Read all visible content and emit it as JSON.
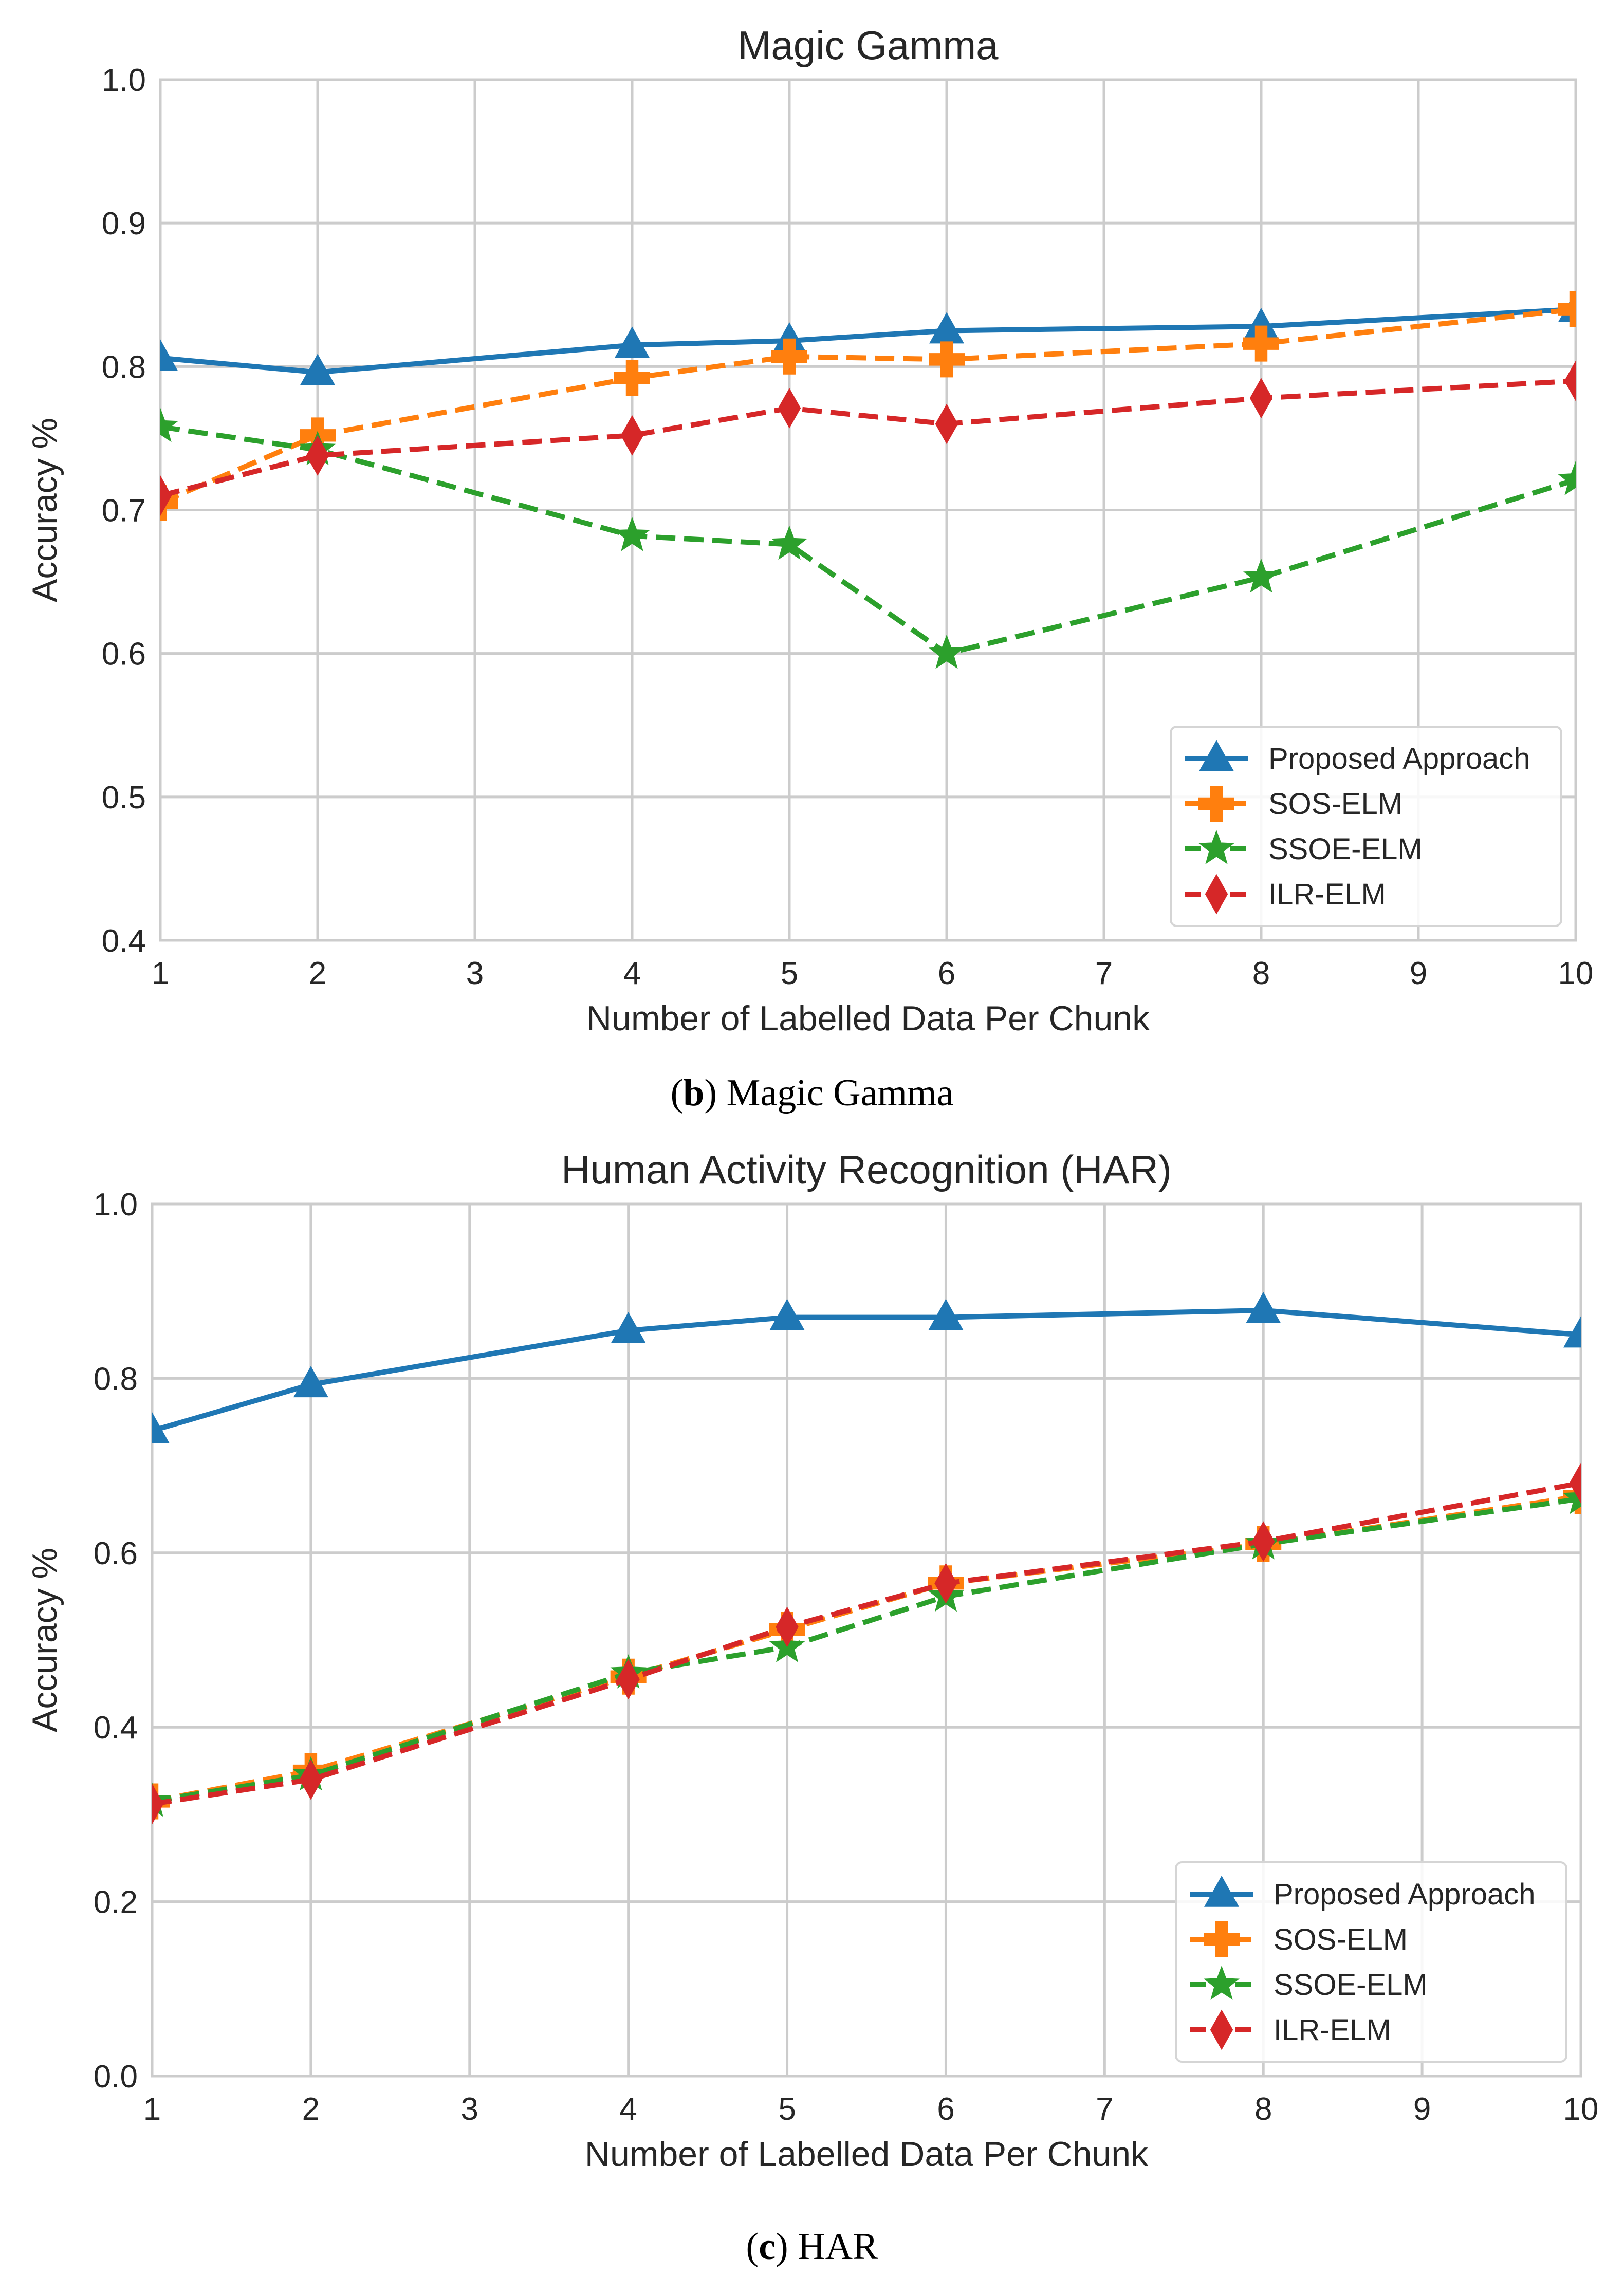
{
  "chart_data": [
    {
      "type": "line",
      "title": "Magic Gamma",
      "xlabel": "Number of Labelled Data Per Chunk",
      "ylabel": "Accuracy %",
      "x": [
        1,
        2,
        4,
        5,
        6,
        8,
        10
      ],
      "xticks": [
        "1",
        "2",
        "3",
        "4",
        "5",
        "6",
        "7",
        "8",
        "9",
        "10"
      ],
      "yticks": [
        "0.4",
        "0.5",
        "0.6",
        "0.7",
        "0.8",
        "0.9",
        "1.0"
      ],
      "xlim": [
        1,
        10
      ],
      "ylim": [
        0.4,
        1.0
      ],
      "grid": true,
      "legend_position": "bottom-right",
      "series": [
        {
          "name": "Proposed Approach",
          "color": "#1f77b4",
          "marker": "triangle",
          "dashed": false,
          "values": [
            0.806,
            0.796,
            0.815,
            0.818,
            0.825,
            0.828,
            0.84
          ]
        },
        {
          "name": "SOS-ELM",
          "color": "#ff7f0e",
          "marker": "plus",
          "dashed": true,
          "values": [
            0.705,
            0.752,
            0.792,
            0.807,
            0.805,
            0.816,
            0.84
          ]
        },
        {
          "name": "SSOE-ELM",
          "color": "#2ca02c",
          "marker": "star",
          "dashed": true,
          "values": [
            0.758,
            0.742,
            0.682,
            0.676,
            0.6,
            0.653,
            0.721
          ]
        },
        {
          "name": "ILR-ELM",
          "color": "#d62728",
          "marker": "diamond",
          "dashed": true,
          "values": [
            0.71,
            0.738,
            0.752,
            0.771,
            0.76,
            0.778,
            0.79
          ]
        }
      ],
      "caption_letter": "b",
      "caption_text": "Magic Gamma"
    },
    {
      "type": "line",
      "title": "Human Activity Recognition (HAR)",
      "xlabel": "Number of Labelled Data Per Chunk",
      "ylabel": "Accuracy %",
      "x": [
        1,
        2,
        4,
        5,
        6,
        8,
        10
      ],
      "xticks": [
        "1",
        "2",
        "3",
        "4",
        "5",
        "6",
        "7",
        "8",
        "9",
        "10"
      ],
      "yticks": [
        "0.0",
        "0.2",
        "0.4",
        "0.6",
        "0.8",
        "1.0"
      ],
      "xlim": [
        1,
        10
      ],
      "ylim": [
        0.0,
        1.0
      ],
      "grid": true,
      "legend_position": "bottom-right",
      "series": [
        {
          "name": "Proposed Approach",
          "color": "#1f77b4",
          "marker": "triangle",
          "dashed": false,
          "values": [
            0.74,
            0.793,
            0.855,
            0.87,
            0.87,
            0.878,
            0.85
          ]
        },
        {
          "name": "SOS-ELM",
          "color": "#ff7f0e",
          "marker": "plus",
          "dashed": true,
          "values": [
            0.315,
            0.35,
            0.458,
            0.512,
            0.565,
            0.61,
            0.665
          ]
        },
        {
          "name": "SSOE-ELM",
          "color": "#2ca02c",
          "marker": "star",
          "dashed": true,
          "values": [
            0.315,
            0.345,
            0.462,
            0.492,
            0.55,
            0.61,
            0.662
          ]
        },
        {
          "name": "ILR-ELM",
          "color": "#d62728",
          "marker": "diamond",
          "dashed": true,
          "values": [
            0.312,
            0.34,
            0.455,
            0.515,
            0.565,
            0.613,
            0.68
          ]
        }
      ],
      "caption_letter": "c",
      "caption_text": "HAR"
    }
  ]
}
